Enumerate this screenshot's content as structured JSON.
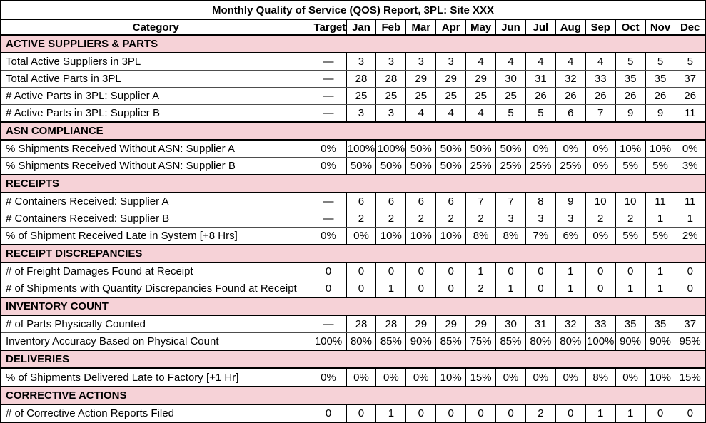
{
  "title": "Monthly Quality of Service (QOS) Report, 3PL: Site XXX",
  "header": {
    "category": "Category",
    "target": "Target",
    "months": [
      "Jan",
      "Feb",
      "Mar",
      "Apr",
      "May",
      "Jun",
      "Jul",
      "Aug",
      "Sep",
      "Oct",
      "Nov",
      "Dec"
    ]
  },
  "sections": [
    {
      "name": "ACTIVE SUPPLIERS & PARTS",
      "rows": [
        {
          "label": "Total Active Suppliers in 3PL",
          "target": "—",
          "values": [
            "3",
            "3",
            "3",
            "3",
            "4",
            "4",
            "4",
            "4",
            "4",
            "5",
            "5",
            "5"
          ]
        },
        {
          "label": "Total Active Parts in 3PL",
          "target": "—",
          "values": [
            "28",
            "28",
            "29",
            "29",
            "29",
            "30",
            "31",
            "32",
            "33",
            "35",
            "35",
            "37"
          ]
        },
        {
          "label": "# Active Parts in 3PL: Supplier A",
          "target": "—",
          "values": [
            "25",
            "25",
            "25",
            "25",
            "25",
            "25",
            "26",
            "26",
            "26",
            "26",
            "26",
            "26"
          ]
        },
        {
          "label": "# Active Parts in 3PL: Supplier B",
          "target": "—",
          "values": [
            "3",
            "3",
            "4",
            "4",
            "4",
            "5",
            "5",
            "6",
            "7",
            "9",
            "9",
            "11"
          ]
        }
      ]
    },
    {
      "name": "ASN COMPLIANCE",
      "rows": [
        {
          "label": "% Shipments Received Without ASN: Supplier A",
          "target": "0%",
          "values": [
            "100%",
            "100%",
            "50%",
            "50%",
            "50%",
            "50%",
            "0%",
            "0%",
            "0%",
            "10%",
            "10%",
            "0%"
          ]
        },
        {
          "label": "% Shipments Received Without ASN: Supplier B",
          "target": "0%",
          "values": [
            "50%",
            "50%",
            "50%",
            "50%",
            "25%",
            "25%",
            "25%",
            "25%",
            "0%",
            "5%",
            "5%",
            "3%"
          ]
        }
      ]
    },
    {
      "name": "RECEIPTS",
      "rows": [
        {
          "label": "# Containers Received: Supplier A",
          "target": "—",
          "values": [
            "6",
            "6",
            "6",
            "6",
            "7",
            "7",
            "8",
            "9",
            "10",
            "10",
            "11",
            "11"
          ]
        },
        {
          "label": "# Containers Received: Supplier B",
          "target": "—",
          "values": [
            "2",
            "2",
            "2",
            "2",
            "2",
            "3",
            "3",
            "3",
            "2",
            "2",
            "1",
            "1"
          ]
        },
        {
          "label": "% of Shipment Received Late in System [+8 Hrs]",
          "target": "0%",
          "values": [
            "0%",
            "10%",
            "10%",
            "10%",
            "8%",
            "8%",
            "7%",
            "6%",
            "0%",
            "5%",
            "5%",
            "2%"
          ]
        }
      ]
    },
    {
      "name": "RECEIPT DISCREPANCIES",
      "rows": [
        {
          "label": "# of Freight Damages Found at Receipt",
          "target": "0",
          "values": [
            "0",
            "0",
            "0",
            "0",
            "1",
            "0",
            "0",
            "1",
            "0",
            "0",
            "1",
            "0"
          ]
        },
        {
          "label": "# of Shipments with Quantity Discrepancies Found at Receipt",
          "target": "0",
          "values": [
            "0",
            "1",
            "0",
            "0",
            "2",
            "1",
            "0",
            "1",
            "0",
            "1",
            "1",
            "0"
          ]
        }
      ]
    },
    {
      "name": "INVENTORY COUNT",
      "rows": [
        {
          "label": "# of Parts Physically Counted",
          "target": "—",
          "values": [
            "28",
            "28",
            "29",
            "29",
            "29",
            "30",
            "31",
            "32",
            "33",
            "35",
            "35",
            "37"
          ]
        },
        {
          "label": "Inventory Accuracy Based on Physical Count",
          "target": "100%",
          "values": [
            "80%",
            "85%",
            "90%",
            "85%",
            "75%",
            "85%",
            "80%",
            "80%",
            "100%",
            "90%",
            "90%",
            "95%"
          ]
        }
      ]
    },
    {
      "name": "DELIVERIES",
      "rows": [
        {
          "label": "% of Shipments Delivered Late to Factory [+1 Hr]",
          "target": "0%",
          "values": [
            "0%",
            "0%",
            "0%",
            "10%",
            "15%",
            "0%",
            "0%",
            "0%",
            "8%",
            "0%",
            "10%",
            "15%"
          ]
        }
      ]
    },
    {
      "name": "CORRECTIVE ACTIONS",
      "rows": [
        {
          "label": "# of Corrective Action Reports Filed",
          "target": "0",
          "values": [
            "0",
            "1",
            "0",
            "0",
            "0",
            "0",
            "2",
            "0",
            "1",
            "1",
            "0",
            "0"
          ]
        }
      ]
    }
  ],
  "colors": {
    "section_bg": "#f6d2d7",
    "border": "#000000",
    "row_divider": "#4d4d4d",
    "text": "#000000"
  }
}
